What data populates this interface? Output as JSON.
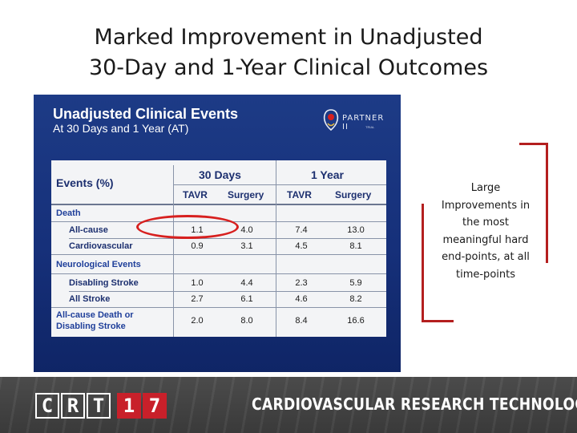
{
  "slide": {
    "title_lines": [
      "Marked Improvement in Unadjusted",
      "30-Day and 1-Year Clinical Outcomes"
    ],
    "callout_lines": [
      "Large",
      "Improvements in",
      "the most",
      "meaningful hard",
      "end-points, at all",
      "time-points"
    ]
  },
  "panel": {
    "title": "Unadjusted Clinical Events",
    "subtitle": "At 30 Days and 1 Year (AT)",
    "logo": {
      "prefix": "THE",
      "name": "PARTNER II",
      "sub": "TRIAL"
    }
  },
  "table": {
    "events_header": "Events (%)",
    "groups": [
      "30 Days",
      "1 Year"
    ],
    "subheaders": [
      "TAVR",
      "Surgery",
      "TAVR",
      "Surgery"
    ],
    "sections": [
      {
        "label": "Death",
        "rows": [
          {
            "label": "All-cause",
            "values": [
              "1.1",
              "4.0",
              "7.4",
              "13.0"
            ]
          },
          {
            "label": "Cardiovascular",
            "values": [
              "0.9",
              "3.1",
              "4.5",
              "8.1"
            ]
          }
        ]
      },
      {
        "label": "Neurological Events",
        "rows": [
          {
            "label": "Disabling Stroke",
            "values": [
              "1.0",
              "4.4",
              "2.3",
              "5.9"
            ]
          },
          {
            "label": "All Stroke",
            "values": [
              "2.7",
              "6.1",
              "4.6",
              "8.2"
            ]
          }
        ]
      },
      {
        "label": "",
        "rows": [
          {
            "label": "All-cause Death or",
            "label2": "Disabling Stroke",
            "values": [
              "2.0",
              "8.0",
              "8.4",
              "16.6"
            ],
            "highlight_30day": true
          }
        ]
      }
    ]
  },
  "footer": {
    "logo_letters": [
      "C",
      "R",
      "T",
      "1",
      "7"
    ],
    "text": "CARDIOVASCULAR RESEARCH TECHNOLOGIES"
  },
  "colors": {
    "panel_blue": "#1d3b86",
    "table_text": "#1c2f6f",
    "highlight_red": "#d7201f",
    "bracket_red": "#b41f1f",
    "crt_red": "#c8202a",
    "footer_gray": "#444444"
  }
}
